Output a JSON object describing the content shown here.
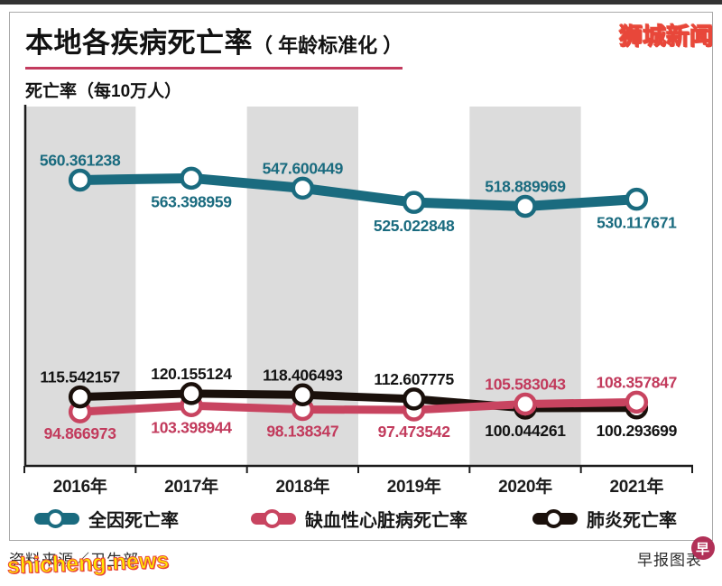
{
  "header": {
    "title_main": "本地各疾病死亡率",
    "title_paren": "（ 年龄标准化 ）",
    "subtitle": "死亡率（每10万人）"
  },
  "watermarks": {
    "top_right": "狮城新闻",
    "bottom_left": "shicheng.news"
  },
  "footer": {
    "source": "资料来源／卫生部",
    "credit": "早报图表",
    "credit_logo_char": "早"
  },
  "colors": {
    "all_cause": "#1a6b7f",
    "ischemic": "#c84460",
    "ischemic_text": "#c23a5c",
    "pneumonia": "#1a100b",
    "pneumonia_text": "#141414",
    "band": "#dcdcdc",
    "axis": "#1c1c1c",
    "title_underline": "#c33b5e",
    "watermark_fill": "#ffe900",
    "watermark_outline": "#e8473a",
    "logo_circle": "#b13057"
  },
  "chart_data": {
    "type": "line",
    "title": "本地各疾病死亡率（年龄标准化）",
    "ylabel": "死亡率（每10万人）",
    "categories": [
      "2016年",
      "2017年",
      "2018年",
      "2019年",
      "2020年",
      "2021年"
    ],
    "grid": "alternating-gray-bands-on-2016-2018-2020",
    "legend_position": "bottom",
    "axis_note": "schematic broken vertical scale; exact values printed at each point",
    "series": [
      {
        "key": "all-cause",
        "name": "全因死亡率",
        "color_key": "all_cause",
        "values": [
          560.361238,
          563.398959,
          547.600449,
          525.022848,
          518.889969,
          530.117671
        ],
        "labels": [
          "560.361238",
          "563.398959",
          "547.600449",
          "525.022848",
          "518.889969",
          "530.117671"
        ]
      },
      {
        "key": "ischemic-heart",
        "name": "缺血性心脏病死亡率",
        "color_key": "ischemic",
        "values": [
          94.866973,
          103.398944,
          98.138347,
          97.473542,
          105.583043,
          108.357847
        ],
        "labels": [
          "94.866973",
          "103.398944",
          "98.138347",
          "97.473542",
          "105.583043",
          "108.357847"
        ]
      },
      {
        "key": "pneumonia",
        "name": "肺炎死亡率",
        "color_key": "pneumonia",
        "values": [
          115.542157,
          120.155124,
          118.406493,
          112.607775,
          100.044261,
          100.293699
        ],
        "labels": [
          "115.542157",
          "120.155124",
          "118.406493",
          "112.607775",
          "100.044261",
          "100.293699"
        ]
      }
    ]
  }
}
